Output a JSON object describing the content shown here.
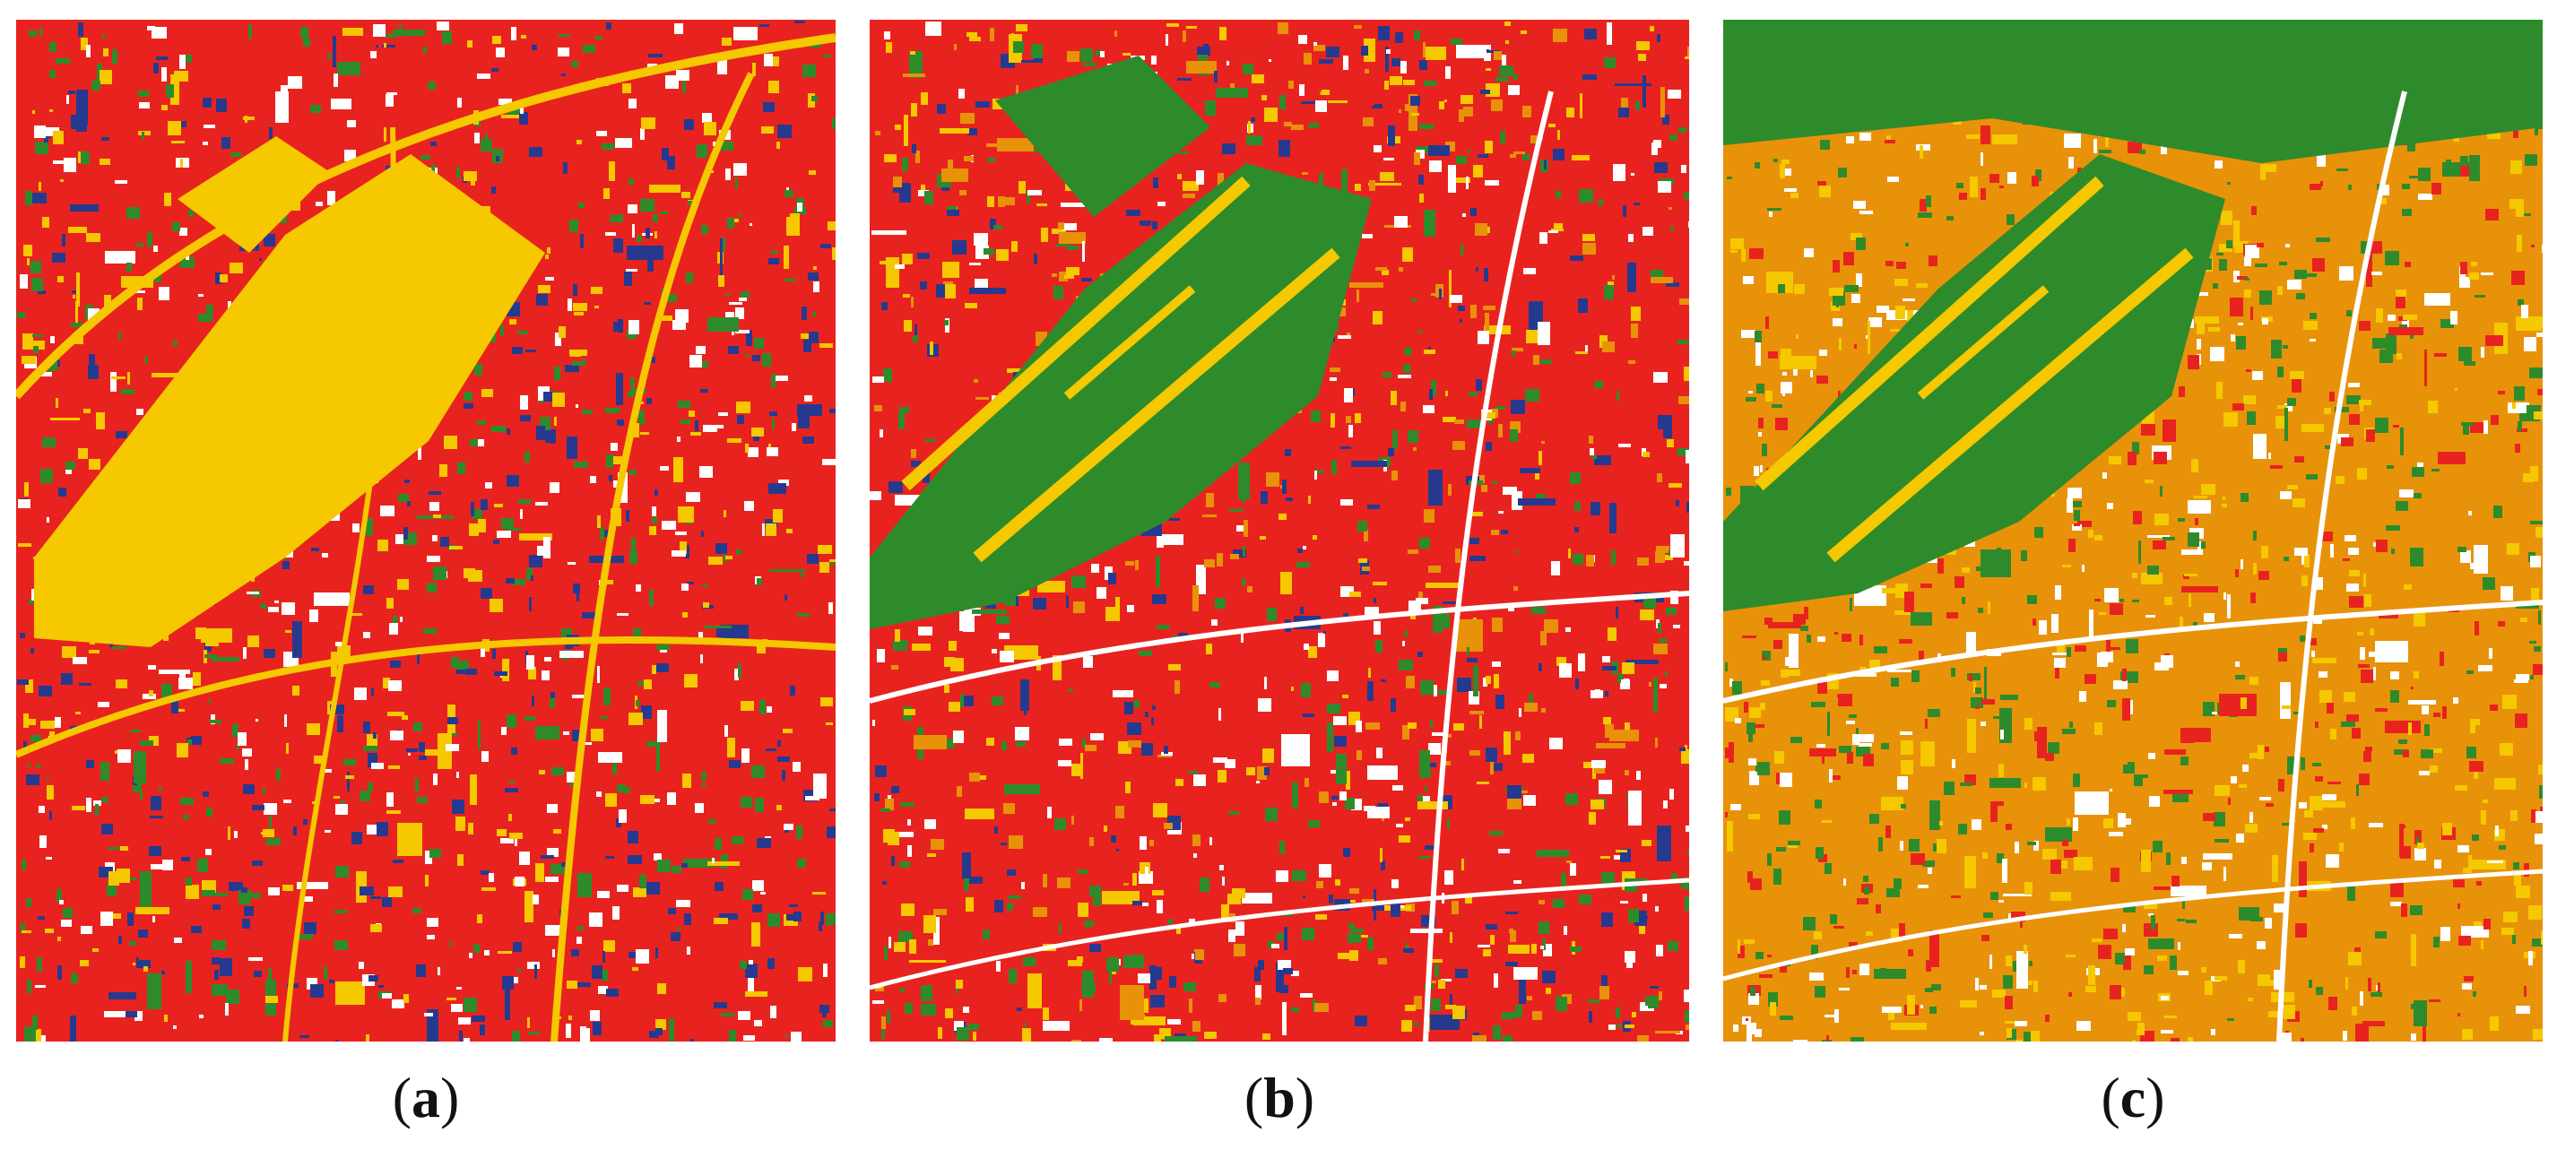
{
  "captions": {
    "a": "a",
    "b": "b",
    "c": "c"
  },
  "colors": {
    "red": "#e8231f",
    "yellow": "#f5c800",
    "blue": "#253a8f",
    "green": "#2e8b2b",
    "orange": "#e8920a",
    "white": "#ffffff"
  },
  "panels": [
    {
      "id": "a",
      "background": "red",
      "palette": [
        "yellow",
        "blue",
        "green",
        "white"
      ]
    },
    {
      "id": "b",
      "background": "red",
      "palette": [
        "green",
        "yellow",
        "blue",
        "white",
        "orange"
      ]
    },
    {
      "id": "c",
      "background": "orange",
      "palette": [
        "green",
        "red",
        "yellow",
        "white"
      ]
    }
  ]
}
